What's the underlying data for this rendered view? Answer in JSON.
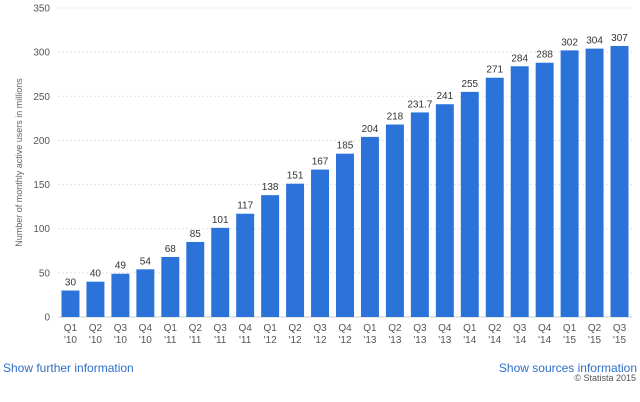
{
  "colors": {
    "bar": "#2b73d9",
    "grid": "#e3e3e3",
    "axis": "#cccccc",
    "link": "#2f6fc9"
  },
  "chart_data": {
    "type": "bar",
    "ylabel": "Number of monthly active users in millions",
    "ylim": [
      0,
      350
    ],
    "yticks": [
      0,
      50,
      100,
      150,
      200,
      250,
      300,
      350
    ],
    "grid": true,
    "categories": [
      [
        "Q1",
        "'10"
      ],
      [
        "Q2",
        "'10"
      ],
      [
        "Q3",
        "'10"
      ],
      [
        "Q4",
        "'10"
      ],
      [
        "Q1",
        "'11"
      ],
      [
        "Q2",
        "'11"
      ],
      [
        "Q3",
        "'11"
      ],
      [
        "Q4",
        "'11"
      ],
      [
        "Q1",
        "'12"
      ],
      [
        "Q2",
        "'12"
      ],
      [
        "Q3",
        "'12"
      ],
      [
        "Q4",
        "'12"
      ],
      [
        "Q1",
        "'13"
      ],
      [
        "Q2",
        "'13"
      ],
      [
        "Q3",
        "'13"
      ],
      [
        "Q4",
        "'13"
      ],
      [
        "Q1",
        "'14"
      ],
      [
        "Q2",
        "'14"
      ],
      [
        "Q3",
        "'14"
      ],
      [
        "Q4",
        "'14"
      ],
      [
        "Q1",
        "'15"
      ],
      [
        "Q2",
        "'15"
      ],
      [
        "Q3",
        "'15"
      ]
    ],
    "values": [
      30,
      40,
      49,
      54,
      68,
      85,
      101,
      117,
      138,
      151,
      167,
      185,
      204,
      218,
      231.7,
      241,
      255,
      271,
      284,
      288,
      302,
      304,
      307
    ]
  },
  "footer": {
    "left_link": "Show further information",
    "right_link": "Show sources information",
    "copyright": "© Statista 2015"
  }
}
